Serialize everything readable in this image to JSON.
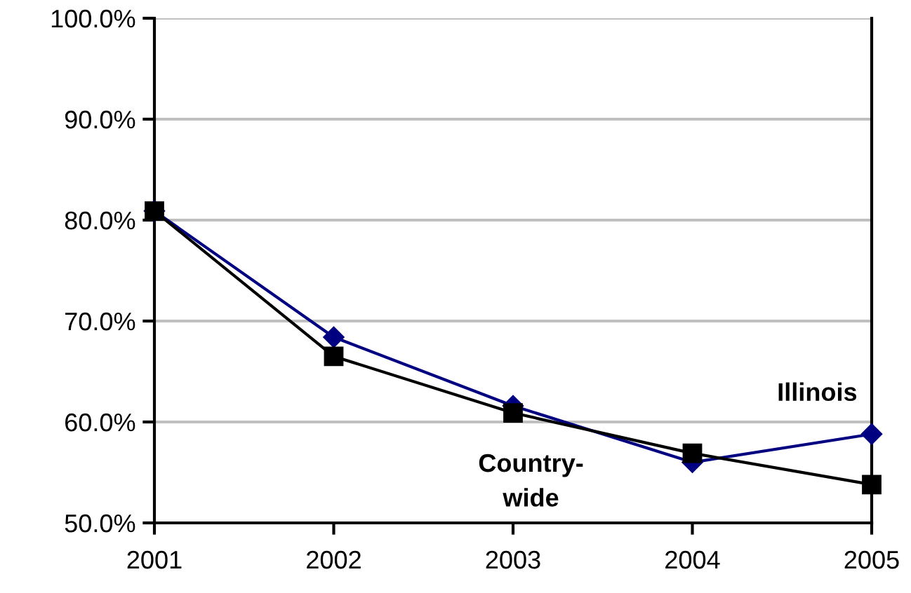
{
  "chart_data": {
    "type": "line",
    "categories": [
      "2001",
      "2002",
      "2003",
      "2004",
      "2005"
    ],
    "series": [
      {
        "name": "Illinois",
        "color": "#000080",
        "marker": "diamond",
        "values": [
          80.9,
          68.4,
          61.6,
          56.0,
          58.8
        ]
      },
      {
        "name": "Country-\nwide",
        "color": "#000000",
        "marker": "square",
        "values": [
          80.9,
          66.5,
          60.9,
          56.9,
          53.8
        ]
      }
    ],
    "ylim": [
      50,
      100
    ],
    "yticks": [
      {
        "value": 50,
        "label": "50.0%"
      },
      {
        "value": 60,
        "label": "60.0%"
      },
      {
        "value": 70,
        "label": "70.0%"
      },
      {
        "value": 80,
        "label": "80.0%"
      },
      {
        "value": 90,
        "label": "90.0%"
      },
      {
        "value": 100,
        "label": "100.0%"
      }
    ],
    "grid": "y",
    "legend": false
  }
}
